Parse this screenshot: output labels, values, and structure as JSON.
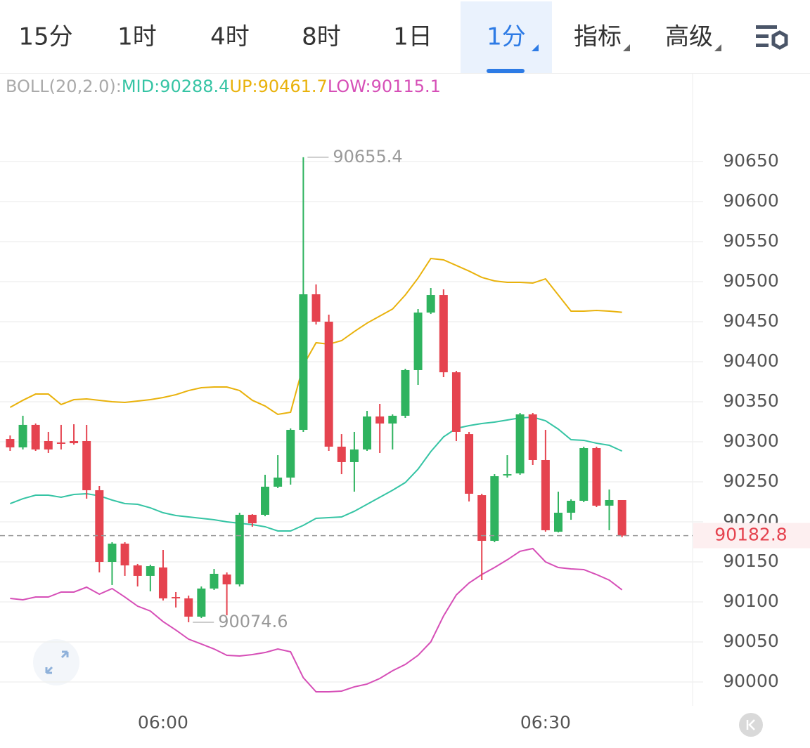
{
  "tabs": [
    {
      "label": "15分"
    },
    {
      "label": "1时"
    },
    {
      "label": "4时"
    },
    {
      "label": "8时"
    },
    {
      "label": "1日"
    },
    {
      "label": "1分",
      "dropdown": true
    },
    {
      "label": "指标",
      "dropdown": true
    },
    {
      "label": "高级",
      "dropdown": true
    }
  ],
  "selected_tab": 5,
  "indicator_legend": {
    "label": "BOLL(20,2.0):",
    "items": [
      {
        "text": "MID:90288.4",
        "color": "#35c4a4"
      },
      {
        "text": "UP:90461.7",
        "color": "#e9b20c"
      },
      {
        "text": "LOW:90115.1",
        "color": "#d64fb7"
      }
    ]
  },
  "chart_data": {
    "type": "candlestick",
    "categories": [
      null,
      null,
      null,
      null,
      null,
      null,
      null,
      null,
      null,
      null,
      null,
      null,
      "06:00",
      null,
      null,
      null,
      null,
      null,
      null,
      null,
      null,
      null,
      null,
      null,
      null,
      null,
      null,
      null,
      null,
      null,
      null,
      null,
      null,
      null,
      null,
      null,
      null,
      null,
      null,
      null,
      null,
      null,
      "06:30",
      null,
      null,
      null,
      null,
      null,
      null
    ],
    "open": [
      90303.5,
      90293.0,
      90321.1,
      90300.9,
      90299.1,
      90300.9,
      90300.9,
      90239.5,
      90150,
      90172.8,
      90145.6,
      90132.5,
      90143.0,
      90106.1,
      90104.4,
      90081.6,
      90116.7,
      90134.2,
      90121.9,
      90208.8,
      90208.8,
      90243.9,
      90255.3,
      90314.9,
      90484.2,
      90450,
      90293.9,
      90274.6,
      90290.4,
      90331.6,
      90322.8,
      90332.5,
      90389.5,
      90461.4,
      90483.3,
      90386.8,
      90309.6,
      90233.3,
      90176.3,
      90257.9,
      90260.5,
      90334.2,
      90277.2,
      90187.7,
      90211.4,
      90226.3,
      90292.1,
      90220.2,
      90227.2
    ],
    "high": [
      90307.9,
      90332.5,
      90322.8,
      90312.3,
      90321.1,
      90321.9,
      90321.1,
      90244.7,
      90174.6,
      90174.6,
      90147.4,
      90146.5,
      90164.9,
      90112.3,
      90107.9,
      90119.3,
      90141.2,
      90136.8,
      90211.4,
      90209.6,
      90258.8,
      90283.3,
      90316.7,
      90655.4,
      90496.5,
      90458.8,
      90309.6,
      90312.3,
      90338.6,
      90347.4,
      90334.2,
      90391.2,
      90465.8,
      90492.1,
      90490.4,
      90388.6,
      90312.3,
      90235.1,
      90259.6,
      90283.3,
      90336.0,
      90336.0,
      90314.9,
      90237.7,
      90228.1,
      90293.9,
      90293.9,
      90240.4,
      90227.2
    ],
    "low": [
      90288.6,
      90290.4,
      90288.6,
      90286.0,
      90290.4,
      90296.5,
      90228.9,
      90136.8,
      90121.1,
      90132.5,
      90119.3,
      90113.2,
      90101.8,
      90093.0,
      90074.6,
      90079.8,
      90114.9,
      90083.3,
      90119.3,
      90193.9,
      90207.0,
      90242.1,
      90246.5,
      90312.3,
      90446.5,
      90288.6,
      90259.6,
      90237.7,
      90288.6,
      90286.0,
      90290.4,
      90329.8,
      90371.1,
      90459.6,
      90380.7,
      90300.9,
      90225.4,
      90127.2,
      90174.6,
      90255.3,
      90258.8,
      90271.1,
      90187.7,
      90186.8,
      90202.6,
      90224.6,
      90218.4,
      90189.5,
      90180.7
    ],
    "close": [
      90293.0,
      90321.1,
      90290.4,
      90290.4,
      90297.4,
      90298.2,
      90239.5,
      90150,
      90172.8,
      90145.6,
      90132.5,
      90144.7,
      90104.4,
      90104.4,
      90081.6,
      90116.7,
      90135.1,
      90121.9,
      90208.8,
      90198.2,
      90243.9,
      90255.3,
      90314.9,
      90484.2,
      90450,
      90293.9,
      90274.6,
      90290.4,
      90331.6,
      90322.8,
      90332.5,
      90389.5,
      90461.4,
      90483.3,
      90386.8,
      90312.3,
      90235.1,
      90176.3,
      90257.0,
      90259.6,
      90334.2,
      90277.2,
      90189.5,
      90211.4,
      90226.3,
      90292.1,
      90220.2,
      90227.2,
      90182.8
    ],
    "up_color": "#2fb35f",
    "down_color": "#e5434f",
    "series": [
      {
        "color": "#e9b20c",
        "values": [
          90343.0,
          90351.8,
          90359.6,
          90359.6,
          90346.5,
          90352.6,
          90353.5,
          90351.8,
          90350.0,
          90349.1,
          90350.9,
          90352.6,
          90355.3,
          90358.8,
          90364.0,
          90367.5,
          90368.4,
          90368.4,
          90364.0,
          90351.8,
          90344.7,
          90334.2,
          90336.8,
          90395.6,
          90423.7,
          90421.9,
          90426.3,
          90437.7,
          90448.2,
          90457.0,
          90465.8,
          90483.3,
          90504.4,
          90528.9,
          90527.2,
          90520.2,
          90513.2,
          90505.3,
          90500.9,
          90499.1,
          90499.1,
          90498.2,
          90503.5,
          90483.3,
          90463.2,
          90463.2,
          90464.0,
          90463.2,
          90461.7
        ]
      },
      {
        "color": "#35c4a4",
        "values": [
          90222.8,
          90228.9,
          90233.3,
          90233.3,
          90230.7,
          90234.2,
          90235.1,
          90232.5,
          90227.2,
          90222.8,
          90221.9,
          90217.5,
          90211.4,
          90207.9,
          90206.1,
          90204.4,
          90202.6,
          90200.0,
          90198.2,
          90196.5,
          90193.9,
          90188.6,
          90188.6,
          90195.6,
          90204.4,
          90205.3,
          90206.1,
          90213.2,
          90221.9,
          90230.7,
          90239.5,
          90249.1,
          90265.8,
          90287.7,
          90306.1,
          90316.7,
          90320.2,
          90322.8,
          90324.6,
          90327.2,
          90329.8,
          90330.7,
          90326.3,
          90315.8,
          90302.6,
          90301.8,
          90298.2,
          90295.6,
          90288.4
        ]
      },
      {
        "color": "#d64fb7",
        "values": [
          90104.4,
          90102.6,
          90106.1,
          90106.1,
          90112.3,
          90112.3,
          90118.4,
          90109.6,
          90116.7,
          90106.1,
          90094.7,
          90088.6,
          90075.4,
          90064.9,
          90053.5,
          90047.4,
          90041.2,
          90033.3,
          90032.5,
          90034.2,
          90036.8,
          90041.2,
          90037.7,
          90005.3,
          89987.7,
          89987.7,
          89988.6,
          89993.9,
          89997.4,
          90004.4,
          90014.0,
          90021.9,
          90033.3,
          90050.0,
          90082.5,
          90108.8,
          90123.7,
          90134.2,
          90143.0,
          90152.6,
          90163.2,
          90166.7,
          90150.0,
          90143.0,
          90141.2,
          90140.4,
          90134.2,
          90127.2,
          90115.1
        ]
      }
    ],
    "ylim": [
      89970,
      90760
    ],
    "yticks": [
      90000,
      90050,
      90100,
      90150,
      90200,
      90250,
      90300,
      90350,
      90400,
      90450,
      90500,
      90550,
      90600,
      90650
    ],
    "grid": true,
    "annotations": [
      {
        "label": "90655.4",
        "value": 90655.4
      },
      {
        "label": "90074.6",
        "value": 90074.6
      }
    ],
    "last_price": {
      "label": "90182.8",
      "value": 90182.8
    }
  }
}
